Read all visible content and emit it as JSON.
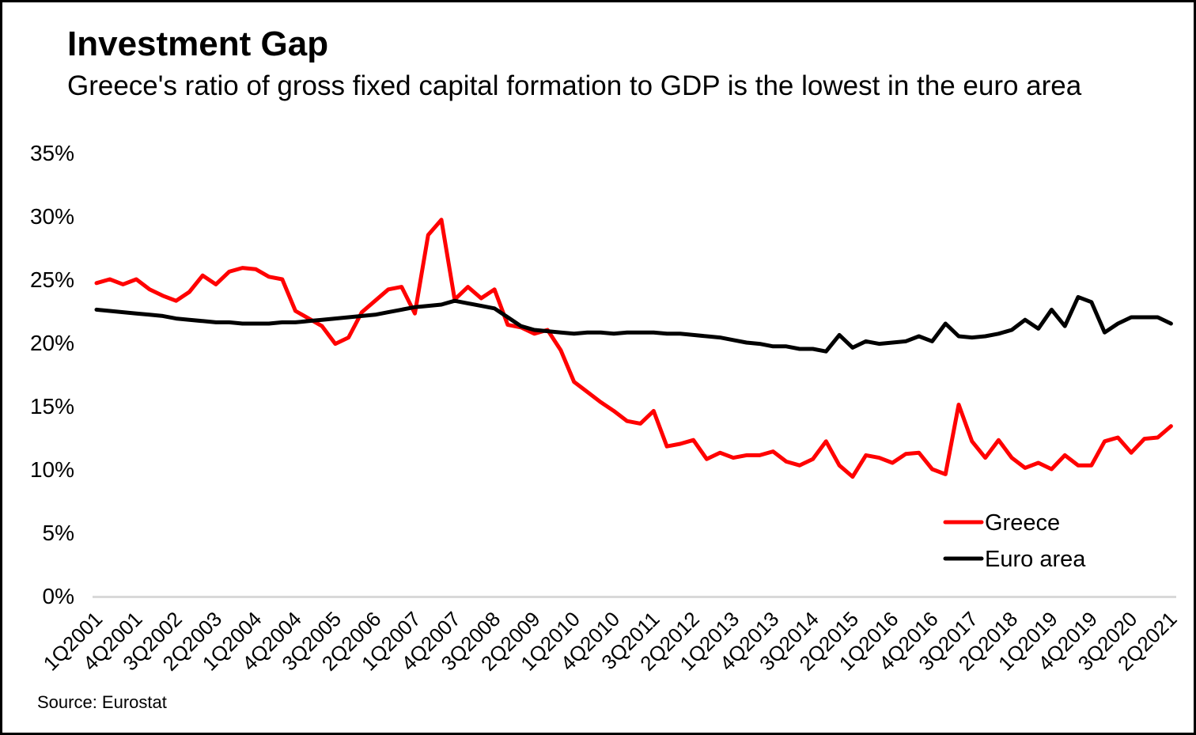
{
  "header": {
    "title": "Investment Gap",
    "subtitle": "Greece's ratio of gross fixed capital formation to GDP is the lowest in the euro area"
  },
  "source_note": "Source: Eurostat",
  "colors": {
    "greece": "#ff0000",
    "euro_area": "#000000",
    "axis_line": "#d9d9d9",
    "background": "#ffffff",
    "frame_border": "#000000"
  },
  "chart_data": {
    "type": "line",
    "title": "Investment Gap",
    "subtitle": "Greece's ratio of gross fixed capital formation to GDP is the lowest in the euro area",
    "xlabel": "",
    "ylabel": "",
    "ylim": [
      0,
      35
    ],
    "y_ticks": [
      0,
      5,
      10,
      15,
      20,
      25,
      30,
      35
    ],
    "y_tick_suffix": "%",
    "x_tick_step": 3,
    "grid": "off",
    "legend_position": "inside-right-lower",
    "categories": [
      "1Q2001",
      "2Q2001",
      "3Q2001",
      "4Q2001",
      "1Q2002",
      "2Q2002",
      "3Q2002",
      "4Q2002",
      "1Q2003",
      "2Q2003",
      "3Q2003",
      "4Q2003",
      "1Q2004",
      "2Q2004",
      "3Q2004",
      "4Q2004",
      "1Q2005",
      "2Q2005",
      "3Q2005",
      "4Q2005",
      "1Q2006",
      "2Q2006",
      "3Q2006",
      "4Q2006",
      "1Q2007",
      "2Q2007",
      "3Q2007",
      "4Q2007",
      "1Q2008",
      "2Q2008",
      "3Q2008",
      "4Q2008",
      "1Q2009",
      "2Q2009",
      "3Q2009",
      "4Q2009",
      "1Q2010",
      "2Q2010",
      "3Q2010",
      "4Q2010",
      "1Q2011",
      "2Q2011",
      "3Q2011",
      "4Q2011",
      "1Q2012",
      "2Q2012",
      "3Q2012",
      "4Q2012",
      "1Q2013",
      "2Q2013",
      "3Q2013",
      "4Q2013",
      "1Q2014",
      "2Q2014",
      "3Q2014",
      "4Q2014",
      "1Q2015",
      "2Q2015",
      "3Q2015",
      "4Q2015",
      "1Q2016",
      "2Q2016",
      "3Q2016",
      "4Q2016",
      "1Q2017",
      "2Q2017",
      "3Q2017",
      "4Q2017",
      "1Q2018",
      "2Q2018",
      "3Q2018",
      "4Q2018",
      "1Q2019",
      "2Q2019",
      "3Q2019",
      "4Q2019",
      "1Q2020",
      "2Q2020",
      "3Q2020",
      "4Q2020",
      "1Q2021",
      "2Q2021"
    ],
    "series": [
      {
        "name": "Greece",
        "color": "#ff0000",
        "values": [
          24.7,
          25.0,
          24.6,
          25.0,
          24.2,
          23.7,
          23.3,
          24.0,
          25.3,
          24.6,
          25.6,
          25.9,
          25.8,
          25.2,
          25.0,
          22.5,
          21.9,
          21.3,
          19.9,
          20.4,
          22.4,
          23.3,
          24.2,
          24.4,
          22.3,
          28.5,
          29.7,
          23.4,
          24.4,
          23.5,
          24.2,
          21.4,
          21.2,
          20.7,
          21.0,
          19.4,
          16.9,
          16.1,
          15.3,
          14.6,
          13.8,
          13.6,
          14.6,
          11.8,
          12.0,
          12.3,
          10.8,
          11.3,
          10.9,
          11.1,
          11.1,
          11.4,
          10.6,
          10.3,
          10.8,
          12.2,
          10.3,
          9.4,
          11.1,
          10.9,
          10.5,
          11.2,
          11.3,
          10.0,
          9.6,
          15.1,
          12.2,
          10.9,
          12.3,
          10.9,
          10.1,
          10.5,
          10.0,
          11.1,
          10.3,
          10.3,
          12.2,
          12.5,
          11.3,
          12.4,
          12.5,
          13.4
        ]
      },
      {
        "name": "Euro area",
        "color": "#000000",
        "values": [
          22.6,
          22.5,
          22.4,
          22.3,
          22.2,
          22.1,
          21.9,
          21.8,
          21.7,
          21.6,
          21.6,
          21.5,
          21.5,
          21.5,
          21.6,
          21.6,
          21.7,
          21.8,
          21.9,
          22.0,
          22.1,
          22.2,
          22.4,
          22.6,
          22.8,
          22.9,
          23.0,
          23.3,
          23.1,
          22.9,
          22.7,
          22.0,
          21.3,
          21.0,
          20.9,
          20.8,
          20.7,
          20.8,
          20.8,
          20.7,
          20.8,
          20.8,
          20.8,
          20.7,
          20.7,
          20.6,
          20.5,
          20.4,
          20.2,
          20.0,
          19.9,
          19.7,
          19.7,
          19.5,
          19.5,
          19.3,
          20.6,
          19.6,
          20.1,
          19.9,
          20.0,
          20.1,
          20.5,
          20.1,
          21.5,
          20.5,
          20.4,
          20.5,
          20.7,
          21.0,
          21.8,
          21.1,
          22.6,
          21.3,
          23.6,
          23.2,
          20.8,
          21.5,
          22.0,
          22.0,
          22.0,
          21.5
        ]
      }
    ]
  }
}
